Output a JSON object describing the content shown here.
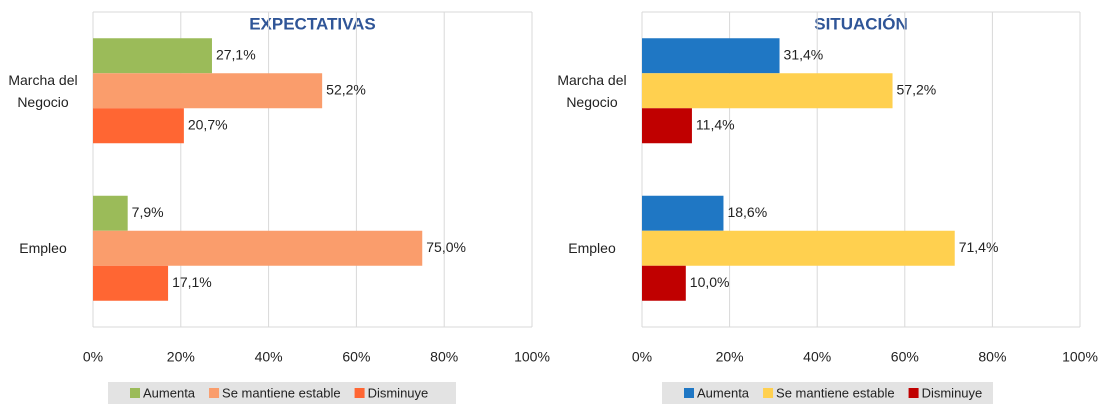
{
  "chart_data": [
    {
      "type": "barh",
      "title": "EXPECTATIVAS",
      "categories": [
        "Marcha del Negocio",
        "Empleo"
      ],
      "series": [
        {
          "name": "Aumenta",
          "color": "#9bbb59",
          "values": [
            27.1,
            7.9
          ],
          "value_labels": [
            "27,1%",
            "7,9%"
          ]
        },
        {
          "name": "Se mantiene estable",
          "color": "#fa9d6c",
          "values": [
            52.2,
            75.0
          ],
          "value_labels": [
            "52,2%",
            "75,0%"
          ]
        },
        {
          "name": "Disminuye",
          "color": "#ff6633",
          "values": [
            20.7,
            17.1
          ],
          "value_labels": [
            "20,7%",
            "17,1%"
          ]
        }
      ],
      "xlim": [
        0,
        100
      ],
      "xticks": [
        {
          "value": 0,
          "label": "0%"
        },
        {
          "value": 20,
          "label": "20%"
        },
        {
          "value": 40,
          "label": "40%"
        },
        {
          "value": 60,
          "label": "60%"
        },
        {
          "value": 80,
          "label": "80%"
        },
        {
          "value": 100,
          "label": "100%"
        }
      ],
      "grid": true,
      "legend": "bottom"
    },
    {
      "type": "barh",
      "title": "SITUACIÓN",
      "categories": [
        "Marcha del Negocio",
        "Empleo"
      ],
      "series": [
        {
          "name": "Aumenta",
          "color": "#1f77c4",
          "values": [
            31.4,
            18.6
          ],
          "value_labels": [
            "31,4%",
            "18,6%"
          ]
        },
        {
          "name": "Se mantiene estable",
          "color": "#ffd04f",
          "values": [
            57.2,
            71.4
          ],
          "value_labels": [
            "57,2%",
            "71,4%"
          ]
        },
        {
          "name": "Disminuye",
          "color": "#c00000",
          "values": [
            11.4,
            10.0
          ],
          "value_labels": [
            "11,4%",
            "10,0%"
          ]
        }
      ],
      "xlim": [
        0,
        100
      ],
      "xticks": [
        {
          "value": 0,
          "label": "0%"
        },
        {
          "value": 20,
          "label": "20%"
        },
        {
          "value": 40,
          "label": "40%"
        },
        {
          "value": 60,
          "label": "60%"
        },
        {
          "value": 80,
          "label": "80%"
        },
        {
          "value": 100,
          "label": "100%"
        }
      ],
      "grid": true,
      "legend": "bottom"
    }
  ]
}
